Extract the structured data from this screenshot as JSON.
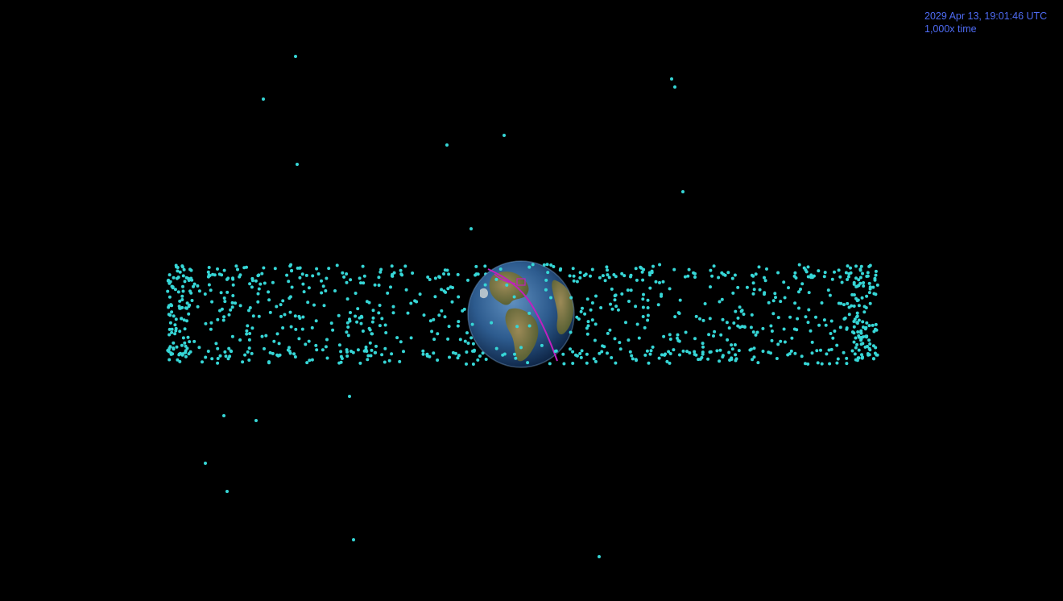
{
  "hud": {
    "date_time": "2029 Apr 13, 19:01:46 UTC",
    "time_rate": "1,000x time"
  },
  "scene": {
    "background_color": "#000000",
    "satellite_color": "#36d6d6",
    "trajectory_color": "#c020c0",
    "hud_color": "#4f6cf5",
    "objects": [
      "earth",
      "satellite-belt",
      "asteroid-trajectory"
    ]
  }
}
